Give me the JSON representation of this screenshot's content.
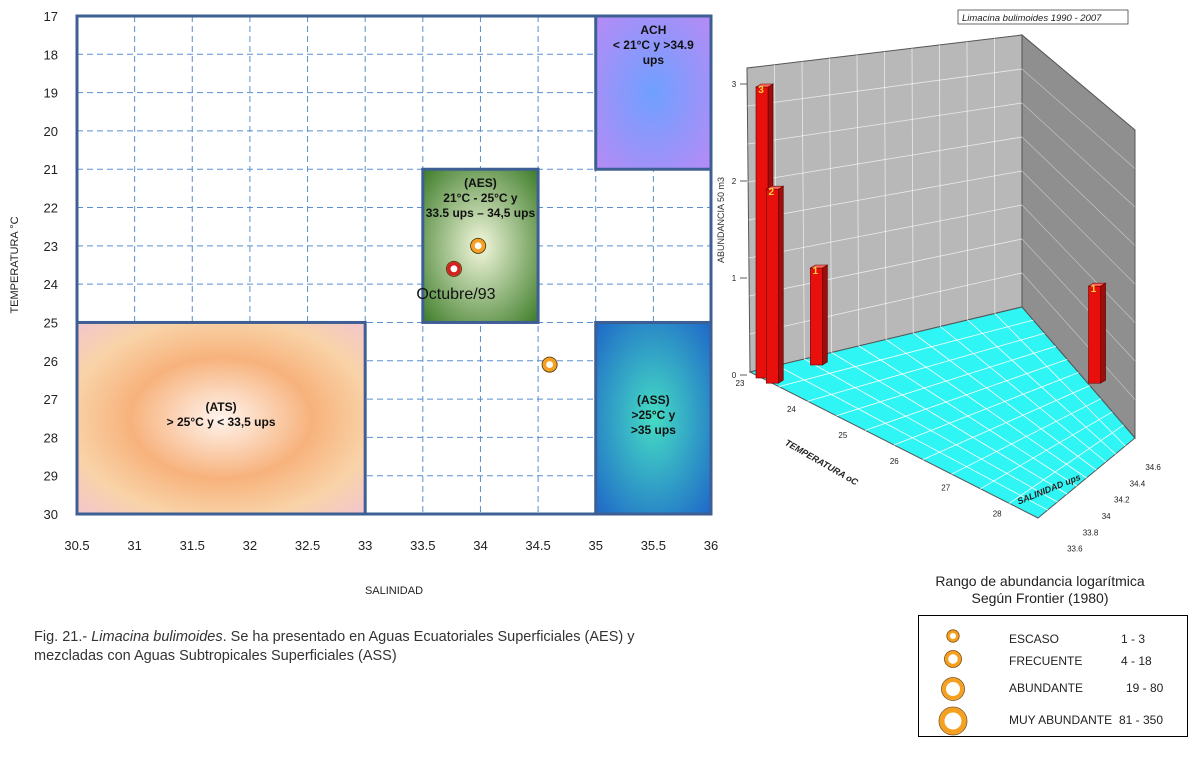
{
  "chart_data": [
    {
      "type": "scatter",
      "xlabel": "SALINIDAD",
      "ylabel": "TEMPERATURA °C",
      "xlim": [
        30.5,
        36
      ],
      "ylim": [
        17,
        30
      ],
      "y_inverted": true,
      "grid": true,
      "x_ticks": [
        "30.5",
        "31",
        "31.5",
        "32",
        "32.5",
        "33",
        "33.5",
        "34",
        "34.5",
        "35",
        "35.5",
        "36"
      ],
      "y_ticks": [
        "17",
        "18",
        "19",
        "20",
        "21",
        "22",
        "23",
        "24",
        "25",
        "26",
        "27",
        "28",
        "29",
        "30"
      ],
      "regions": [
        {
          "id": "ach",
          "lines": [
            "ACH",
            "< 21°C  y  >34.9",
            "ups"
          ],
          "salinity": [
            35,
            36
          ],
          "temperature": [
            17,
            21
          ],
          "color_inner": "#6fa0ff",
          "color_outer": "#b68bf5"
        },
        {
          "id": "aes",
          "lines": [
            "(AES)",
            "21°C - 25°C   y",
            "33.5 ups – 34,5 ups"
          ],
          "salinity": [
            33.5,
            34.5
          ],
          "temperature": [
            21,
            25
          ],
          "color_inner": "#f2f7dc",
          "color_outer": "#3e7d2a"
        },
        {
          "id": "ats",
          "lines": [
            "(ATS)",
            "> 25°C   y   < 33,5 ups"
          ],
          "salinity": [
            30.5,
            33
          ],
          "temperature": [
            25,
            30
          ],
          "color_inner": "#fff4ee",
          "color_outer": "#f6c38e"
        },
        {
          "id": "ass",
          "lines": [
            "(ASS)",
            ">25°C   y",
            ">35  ups"
          ],
          "salinity": [
            35,
            36
          ],
          "temperature": [
            25,
            30
          ],
          "color_inner": "#45dcc4",
          "color_outer": "#1f68c8"
        }
      ],
      "points": [
        {
          "salinity": 33.98,
          "temperature": 23.0,
          "category": "escaso",
          "color": "#f5a020"
        },
        {
          "salinity": 33.77,
          "temperature": 23.6,
          "category": "escaso",
          "color": "#d42020",
          "label": "Octubre/93"
        },
        {
          "salinity": 34.6,
          "temperature": 26.1,
          "category": "escaso",
          "color": "#f5a020"
        }
      ]
    },
    {
      "type": "bar",
      "title": "Limacina bulimoides  1990 - 2007",
      "x_axis_label": "SALINIDAD   ups",
      "y_axis_label": "TEMPERATURA  oC",
      "z_axis_label": "ABUNDANCIA  50 m3",
      "salinity_ticks": [
        "33.6",
        "33.8",
        "34",
        "34.2",
        "34.4",
        "34.6"
      ],
      "temperature_ticks": [
        "23",
        "24",
        "25",
        "26",
        "27",
        "28"
      ],
      "abundance_ticks": [
        "0",
        "1",
        "2",
        "3"
      ],
      "bars": [
        {
          "salinity": 33.6,
          "temperature": 23.0,
          "value": 3,
          "label": "3"
        },
        {
          "salinity": 33.6,
          "temperature": 23.2,
          "value": 2,
          "label": "2"
        },
        {
          "salinity": 33.8,
          "temperature": 23.0,
          "value": 1,
          "label": "1"
        },
        {
          "salinity": 34.6,
          "temperature": 26.0,
          "value": 1,
          "label": "1"
        }
      ],
      "bar_color": "#e8100c",
      "floor_color": "#2ff5f5",
      "wall_color": "#b8b8b8"
    }
  ],
  "caption": {
    "prefix": "Fig. 21.- ",
    "species": "Limacina bulimoides",
    "text": ".   Se ha presentado en Aguas Ecuatoriales Superficiales (AES) y mezcladas con Aguas Subtropicales Superficiales (ASS)"
  },
  "legend": {
    "title": "Rango de abundancia logarítmica",
    "subtitle": "Según Frontier (1980)",
    "items": [
      {
        "name": "ESCASO",
        "range": "1 - 3",
        "size": "s"
      },
      {
        "name": "FRECUENTE",
        "range": "4 - 18",
        "size": "m"
      },
      {
        "name": "ABUNDANTE",
        "range": "19 - 80",
        "size": "l"
      },
      {
        "name": "MUY ABUNDANTE",
        "range": "81 - 350",
        "size": "xl"
      }
    ],
    "marker_color": "#f5a020"
  }
}
